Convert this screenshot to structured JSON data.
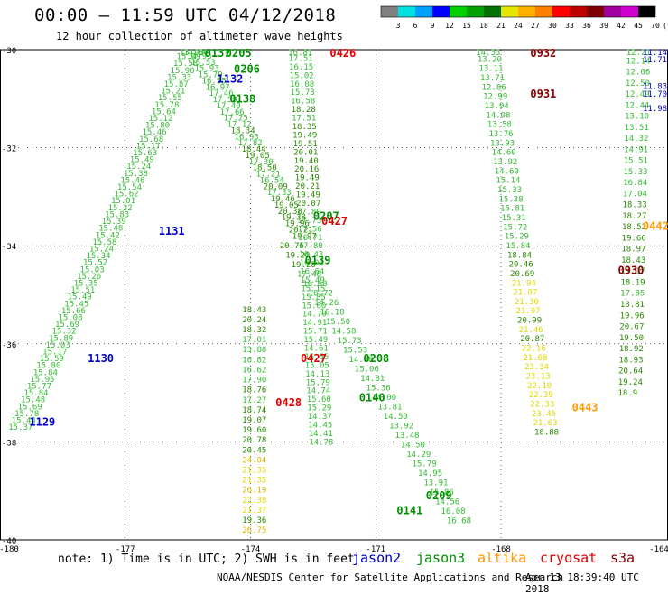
{
  "title": "00:00 – 11:59 UTC 04/12/2018",
  "subtitle": "12 hour collection of altimeter wave heights",
  "note": "note: 1) Time is in UTC; 2) SWH is in feet",
  "credit": "NOAA/NESDIS Center for Satellite Applications and Research",
  "generated": "Apr 13 18:39:40 UTC 2018",
  "satellites": [
    {
      "name": "jason2",
      "color": "#0000cc"
    },
    {
      "name": "jason3",
      "color": "#009000"
    },
    {
      "name": "altika",
      "color": "#ff9900"
    },
    {
      "name": "cryosat",
      "color": "#e00000"
    },
    {
      "name": "s3a",
      "color": "#880000"
    }
  ],
  "colorbar": {
    "unit": "(ft)",
    "colors": [
      "#808080",
      "#00e0e0",
      "#00a0ff",
      "#0000ff",
      "#00d000",
      "#00a000",
      "#007000",
      "#e6e600",
      "#ffb000",
      "#ff8000",
      "#ff0000",
      "#c00000",
      "#800000",
      "#a000a0",
      "#d000d0",
      "#000000"
    ],
    "ticks": [
      "3",
      "6",
      "9",
      "12",
      "15",
      "18",
      "21",
      "24",
      "27",
      "30",
      "33",
      "36",
      "39",
      "42",
      "45",
      "70"
    ]
  },
  "chart_data": {
    "type": "scatter",
    "title": "00:00 – 11:59 UTC 04/12/2018",
    "xlabel": "",
    "ylabel": "",
    "xlim": [
      -180,
      -164
    ],
    "ylim": [
      -40,
      -30
    ],
    "x_ticks": [
      "-180",
      "-177",
      "-174",
      "-171",
      "-168",
      "-164"
    ],
    "y_ticks": [
      "-30",
      "-32",
      "-34",
      "-36",
      "-38",
      "-40"
    ],
    "grid": true,
    "tracks": [
      {
        "satellite": "jason3",
        "from": [
          -179.8,
          -37.7
        ],
        "to": [
          -175.7,
          -30.0
        ],
        "color": "#33bb33",
        "values": [
          "15.37",
          "15.44",
          "15.78",
          "15.69",
          "15.48",
          "15.84",
          "15.77",
          "15.95",
          "15.84",
          "15.80",
          "15.59",
          "15.17",
          "15.03",
          "15.89",
          "15.32",
          "15.69",
          "15.08",
          "15.66",
          "15.45",
          "15.49",
          "15.51",
          "15.35",
          "15.26",
          "15.03",
          "15.52",
          "15.34",
          "15.24",
          "15.58",
          "15.42",
          "15.48",
          "15.39",
          "15.83",
          "15.32",
          "15.01",
          "15.62",
          "15.54",
          "15.46",
          "15.38",
          "15.24",
          "15.49",
          "15.63",
          "15.17",
          "15.68",
          "15.46",
          "15.80",
          "15.12",
          "15.64",
          "15.78",
          "15.55",
          "15.21",
          "15.87",
          "15.33",
          "15.90",
          "15.58",
          "15.09",
          "13.90"
        ]
      },
      {
        "satellite": "jason3",
        "from": [
          -175.6,
          -30.0
        ],
        "to": [
          -173.0,
          -33.8
        ],
        "color": "#33bb33",
        "values": [
          "14.50",
          "14.93",
          "15.53",
          "15.93",
          "15.79",
          "16.55",
          "16.97",
          "17.46",
          "17.58",
          "17.40",
          "17.66",
          "17.25",
          "17.12",
          "18.34",
          "16.93",
          "17.82",
          "18.44",
          "19.05",
          "17.30",
          "18.50",
          "17.21",
          "16.54",
          "20.09",
          "17.33",
          "19.46",
          "19.05",
          "20.38",
          "19.38",
          "19.96",
          "20.21",
          "19.97"
        ]
      },
      {
        "satellite": "jason3",
        "from": [
          -173.3,
          -34.0
        ],
        "to": [
          -169.3,
          -39.6
        ],
        "color": "#33bb33",
        "values": [
          "20.76",
          "19.20",
          "19.28",
          "17.48",
          "16.68",
          "16.72",
          "14.26",
          "16.18",
          "15.50",
          "14.58",
          "15.73",
          "15.53",
          "14.68",
          "15.06",
          "14.81",
          "15.36",
          "14.00",
          "13.81",
          "14.50",
          "13.92",
          "13.48",
          "14.50",
          "14.29",
          "15.79",
          "14.95",
          "13.91",
          "15.86",
          "14.56",
          "16.08",
          "16.68"
        ]
      },
      {
        "satellite": "jason3",
        "from": [
          -173.1,
          -30.0
        ],
        "to": [
          -172.6,
          -38.0
        ],
        "color": "#33bb33",
        "values": [
          "16.81",
          "17.51",
          "16.15",
          "15.02",
          "16.08",
          "15.73",
          "16.58",
          "18.28",
          "17.51",
          "18.35",
          "19.49",
          "19.51",
          "20.01",
          "19.40",
          "20.16",
          "19.49",
          "20.21",
          "19.49",
          "20.07",
          "17.89",
          "17.75",
          "17.56",
          "16.71",
          "17.80",
          "16.43",
          "16.04",
          "16.64",
          "15.49",
          "15.15",
          "15.85",
          "15.60",
          "14.79",
          "14.91",
          "15.71",
          "15.49",
          "14.61",
          "15.55",
          "15.05",
          "14.13",
          "15.79",
          "14.74",
          "15.60",
          "15.29",
          "14.37",
          "14.45",
          "14.41",
          "14.78"
        ]
      },
      {
        "satellite": "jason3",
        "from": [
          -174.2,
          -35.3
        ],
        "to": [
          -174.2,
          -39.8
        ],
        "color": "#33bb33",
        "values": [
          "18.43",
          "20.24",
          "18.32",
          "17.01",
          "13.88",
          "16.82",
          "16.62",
          "17.90",
          "18.76",
          "17.27",
          "18.74",
          "19.07",
          "19.60",
          "20.78",
          "20.45",
          "24.04",
          "21.35",
          "21.35",
          "26.19",
          "22.38",
          "21.37",
          "19.36",
          "26.75"
        ]
      },
      {
        "satellite": "jason3",
        "from": [
          -168.6,
          -30.0
        ],
        "to": [
          -167.2,
          -37.8
        ],
        "color": "#33bb33",
        "values": [
          "14.35",
          "13.20",
          "13.11",
          "13.71",
          "12.86",
          "12.99",
          "13.94",
          "14.08",
          "13.58",
          "13.76",
          "13.93",
          "14.60",
          "13.92",
          "14.60",
          "15.14",
          "15.33",
          "15.38",
          "15.81",
          "15.31",
          "15.72",
          "15.29",
          "15.84",
          "18.84",
          "20.46",
          "20.69",
          "21.94",
          "21.07",
          "21.30",
          "21.07",
          "20.99",
          "21.46",
          "20.87",
          "22.16",
          "21.68",
          "23.34",
          "23.13",
          "22.10",
          "22.39",
          "22.33",
          "23.45",
          "21.63",
          "18.88"
        ]
      },
      {
        "satellite": "jason3",
        "from": [
          -165.0,
          -30.0
        ],
        "to": [
          -165.2,
          -37.0
        ],
        "color": "#33bb33",
        "values": [
          "12.21",
          "12.14",
          "12.06",
          "12.50",
          "12.49",
          "12.44",
          "13.10",
          "13.51",
          "14.32",
          "14.91",
          "15.51",
          "15.33",
          "16.84",
          "17.04",
          "18.33",
          "18.27",
          "18.52",
          "19.66",
          "18.97",
          "18.43",
          "17.17",
          "18.19",
          "17.85",
          "18.81",
          "19.96",
          "20.67",
          "19.50",
          "18.92",
          "18.93",
          "20.64",
          "19.24",
          "18.9"
        ]
      }
    ],
    "time_labels": [
      {
        "text": "0137",
        "x": -175.1,
        "y": -30.0,
        "satellite": "jason3"
      },
      {
        "text": "0205",
        "x": -174.6,
        "y": -30.02,
        "satellite": "jason3"
      },
      {
        "text": "0206",
        "x": -174.4,
        "y": -30.4,
        "satellite": "jason3"
      },
      {
        "text": "0138",
        "x": -174.5,
        "y": -31.0,
        "satellite": "jason3"
      },
      {
        "text": "1132",
        "x": -174.8,
        "y": -30.6,
        "satellite": "jason2"
      },
      {
        "text": "1131",
        "x": -176.2,
        "y": -33.7,
        "satellite": "jason2"
      },
      {
        "text": "1130",
        "x": -177.9,
        "y": -36.3,
        "satellite": "jason2"
      },
      {
        "text": "1129",
        "x": -179.3,
        "y": -37.6,
        "satellite": "jason2"
      },
      {
        "text": "0426",
        "x": -172.1,
        "y": -30.02,
        "satellite": "cryosat"
      },
      {
        "text": "0207",
        "x": -172.5,
        "y": -33.4,
        "satellite": "jason3"
      },
      {
        "text": "0427",
        "x": -172.3,
        "y": -33.5,
        "satellite": "cryosat"
      },
      {
        "text": "0139",
        "x": -172.7,
        "y": -34.3,
        "satellite": "jason3"
      },
      {
        "text": "0427",
        "x": -172.8,
        "y": -36.3,
        "satellite": "cryosat"
      },
      {
        "text": "0208",
        "x": -171.3,
        "y": -36.3,
        "satellite": "jason3"
      },
      {
        "text": "0428",
        "x": -173.4,
        "y": -37.2,
        "satellite": "cryosat"
      },
      {
        "text": "0140",
        "x": -171.4,
        "y": -37.1,
        "satellite": "jason3"
      },
      {
        "text": "0209",
        "x": -169.8,
        "y": -39.1,
        "satellite": "jason3"
      },
      {
        "text": "0141",
        "x": -170.5,
        "y": -39.4,
        "satellite": "jason3"
      },
      {
        "text": "0932",
        "x": -167.3,
        "y": -30.05,
        "satellite": "s3a"
      },
      {
        "text": "0931",
        "x": -167.3,
        "y": -30.9,
        "satellite": "s3a"
      },
      {
        "text": "0442",
        "x": -164.5,
        "y": -33.6,
        "satellite": "altika"
      },
      {
        "text": "0930",
        "x": -165.2,
        "y": -34.5,
        "satellite": "s3a"
      },
      {
        "text": "0443",
        "x": -166.3,
        "y": -37.3,
        "satellite": "altika"
      }
    ],
    "side_values": [
      {
        "text": "11.14",
        "x": -164.0,
        "y": -30.0,
        "satellite": "jason2"
      },
      {
        "text": "11.71",
        "x": -164.0,
        "y": -30.2,
        "satellite": "jason2"
      },
      {
        "text": "11.83",
        "x": -164.0,
        "y": -30.75,
        "satellite": "jason2"
      },
      {
        "text": "11.70",
        "x": -164.2,
        "y": -30.9,
        "satellite": "jason2"
      },
      {
        "text": "11.98",
        "x": -164.2,
        "y": -31.2,
        "satellite": "jason2"
      }
    ]
  }
}
